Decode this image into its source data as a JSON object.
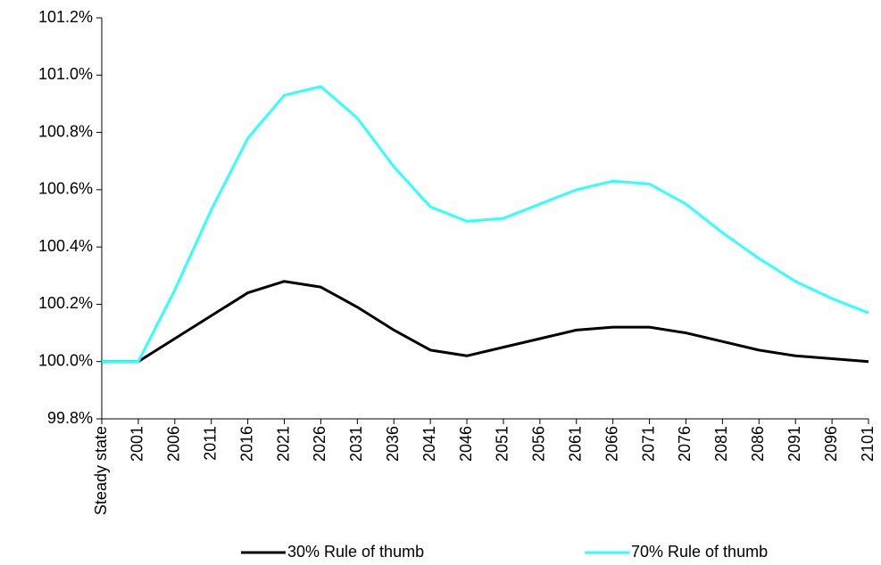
{
  "chart_data": {
    "type": "line",
    "categories": [
      "Steady state",
      "2001",
      "2006",
      "2011",
      "2016",
      "2021",
      "2026",
      "2031",
      "2036",
      "2041",
      "2046",
      "2051",
      "2056",
      "2061",
      "2066",
      "2071",
      "2076",
      "2081",
      "2086",
      "2091",
      "2096",
      "2101"
    ],
    "series": [
      {
        "name": "30% Rule of thumb",
        "color": "#000000",
        "values": [
          100.0,
          100.0,
          100.08,
          100.16,
          100.24,
          100.28,
          100.26,
          100.19,
          100.11,
          100.04,
          100.02,
          100.05,
          100.08,
          100.11,
          100.12,
          100.12,
          100.1,
          100.07,
          100.04,
          100.02,
          100.01,
          100.0
        ]
      },
      {
        "name": "70% Rule of thumb",
        "color": "#33ffff",
        "values": [
          100.0,
          100.0,
          100.25,
          100.53,
          100.78,
          100.93,
          100.96,
          100.85,
          100.68,
          100.54,
          100.49,
          100.5,
          100.55,
          100.6,
          100.63,
          100.62,
          100.55,
          100.45,
          100.36,
          100.28,
          100.22,
          100.17
        ]
      }
    ],
    "ylim": [
      99.8,
      101.2
    ],
    "yticks": [
      {
        "value": 99.8,
        "label": "99.8%"
      },
      {
        "value": 100.0,
        "label": "100.0%"
      },
      {
        "value": 100.2,
        "label": "100.2%"
      },
      {
        "value": 100.4,
        "label": "100.4%"
      },
      {
        "value": 100.6,
        "label": "100.6%"
      },
      {
        "value": 100.8,
        "label": "100.8%"
      },
      {
        "value": 101.0,
        "label": "101.0%"
      },
      {
        "value": 101.2,
        "label": "101.2%"
      }
    ],
    "grid": false,
    "legend": "bottom"
  }
}
